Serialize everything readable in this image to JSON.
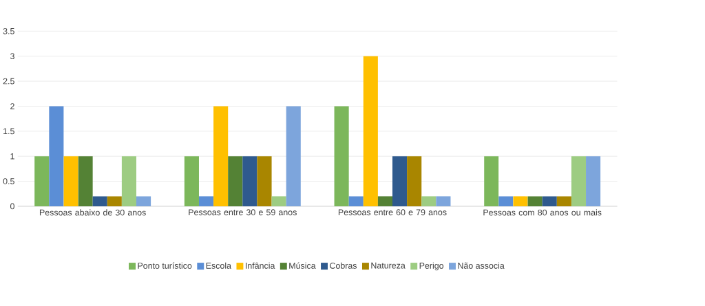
{
  "chart_data": {
    "type": "bar",
    "categories": [
      "Pessoas abaixo de 30 anos",
      "Pessoas entre 30 e 59 anos",
      "Pessoas entre 60 e 79 anos",
      "Pessoas com 80 anos ou mais"
    ],
    "series": [
      {
        "name": "Ponto turístico",
        "color": "#7cb75b",
        "values": [
          1,
          1,
          2,
          1
        ]
      },
      {
        "name": "Escola",
        "color": "#5b8ed6",
        "values": [
          2,
          0.2,
          0.2,
          0.2
        ]
      },
      {
        "name": "Infância",
        "color": "#ffc000",
        "values": [
          1,
          2,
          3,
          0.2
        ]
      },
      {
        "name": "Música",
        "color": "#548235",
        "values": [
          1,
          1,
          0.2,
          0.2
        ]
      },
      {
        "name": "Cobras",
        "color": "#2f5a8e",
        "values": [
          0.2,
          1,
          1,
          0.2
        ]
      },
      {
        "name": "Natureza",
        "color": "#a98600",
        "values": [
          0.2,
          1,
          1,
          0.2
        ]
      },
      {
        "name": "Perigo",
        "color": "#9dcc82",
        "values": [
          1,
          0.2,
          0.2,
          1
        ]
      },
      {
        "name": "Não associa",
        "color": "#7da5dc",
        "values": [
          0.2,
          2,
          0.2,
          1
        ]
      }
    ],
    "ylim": [
      0,
      3.5
    ],
    "yticks": [
      0,
      0.5,
      1,
      1.5,
      2,
      2.5,
      3,
      3.5
    ],
    "grid": "y",
    "legend": "bottom"
  }
}
